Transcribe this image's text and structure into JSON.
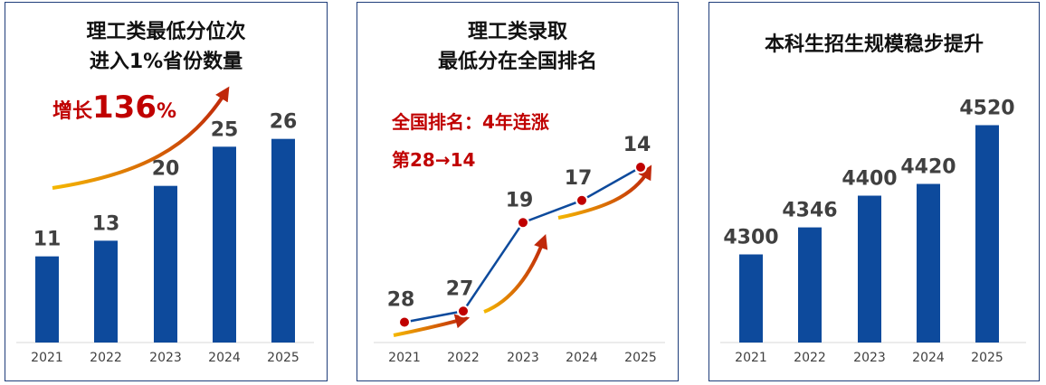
{
  "colors": {
    "bar": "#0d4a9c",
    "line": "#0d4a9c",
    "point": "#c00000",
    "annotation": "#c00000",
    "arrow_start": "#f5b800",
    "arrow_end": "#c0280a",
    "border": "#1f3d7a",
    "text": "#111111",
    "value_label": "#404040",
    "tick_label": "#404040"
  },
  "annotations": {
    "growth_prefix": "增长",
    "growth_number": "136",
    "growth_suffix": "%",
    "rank_streak": "全国排名：4年连涨",
    "rank_change": "第28→14"
  },
  "chart_data": [
    {
      "type": "bar",
      "title": "理工类最低分位次\n进入1%省份数量",
      "categories": [
        "2021",
        "2022",
        "2023",
        "2024",
        "2025"
      ],
      "values": [
        11,
        13,
        20,
        25,
        26
      ],
      "value_labels": [
        "11",
        "13",
        "20",
        "25",
        "26"
      ],
      "ylim": [
        0,
        30
      ],
      "grid": false,
      "legend": "none"
    },
    {
      "type": "line",
      "title": "理工类录取\n最低分在全国排名",
      "categories": [
        "2021",
        "2022",
        "2023",
        "2024",
        "2025"
      ],
      "values": [
        28,
        27,
        19,
        17,
        14
      ],
      "value_labels": [
        "28",
        "27",
        "19",
        "17",
        "14"
      ],
      "ylim": [
        10,
        30
      ],
      "y_inverted": true,
      "grid": false,
      "legend": "none"
    },
    {
      "type": "bar",
      "title": "本科生招生规模稳步提升",
      "categories": [
        "2021",
        "2022",
        "2023",
        "2024",
        "2025"
      ],
      "values": [
        4300,
        4346,
        4400,
        4420,
        4520
      ],
      "value_labels": [
        "4300",
        "4346",
        "4400",
        "4420",
        "4520"
      ],
      "ylim": [
        4150,
        4550
      ],
      "grid": false,
      "legend": "none"
    }
  ]
}
